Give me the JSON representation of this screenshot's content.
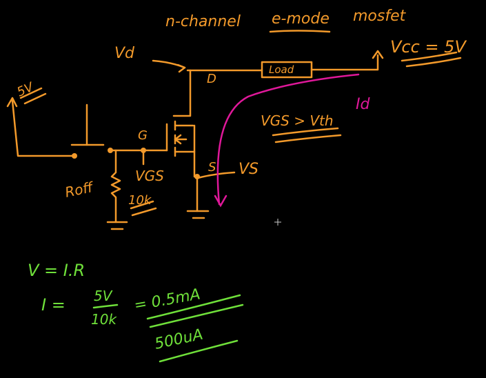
{
  "canvas": {
    "background": "#000000",
    "cursor_icon": "crosshair-cursor-icon"
  },
  "colors": {
    "orange": "#f39a2b",
    "magenta": "#e0189a",
    "green": "#6fe03a"
  },
  "title": {
    "words": [
      "n-channel",
      "e-mode",
      "mosfet"
    ]
  },
  "labels": {
    "vd": "Vd",
    "vcc": "Vcc = 5V",
    "drain": "D",
    "load": "Load",
    "gate": "G",
    "source": "S",
    "vs": "VS",
    "vgs": "VGS",
    "roff": "Roff",
    "r_value": "10k",
    "five_v": "5V",
    "id": "Id",
    "vgs_cond": "VGS > Vth"
  },
  "equations": {
    "ohm": "V = I.R",
    "i_lhs": "I =",
    "i_num": "5V",
    "i_den": "10k",
    "i_eq": "= 0.5mA",
    "i_result": "500uA"
  }
}
